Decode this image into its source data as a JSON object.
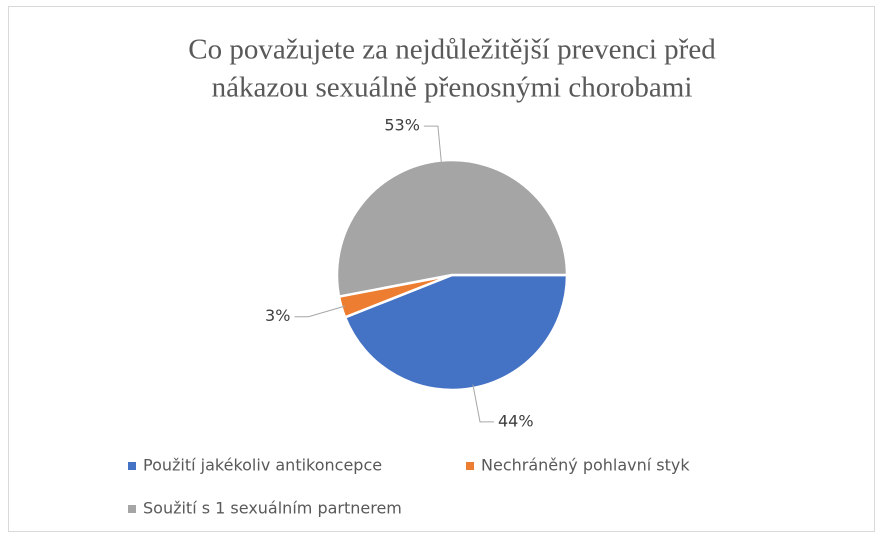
{
  "chart_data": {
    "type": "pie",
    "title": [
      "Co považujete za nejdůležitější prevenci před",
      "nákazou sexuálně přenosnými chorobami"
    ],
    "categories": [
      "Použití jakékoliv antikoncepce",
      "Nechráněný pohlavní styk",
      "Soužití s 1 sexuálním partnerem"
    ],
    "values": [
      44,
      3,
      53
    ],
    "value_labels": [
      "44%",
      "3%",
      "53%"
    ],
    "colors": [
      "#4472c4",
      "#ed7d31",
      "#a5a5a5"
    ],
    "legend": "bottom"
  }
}
